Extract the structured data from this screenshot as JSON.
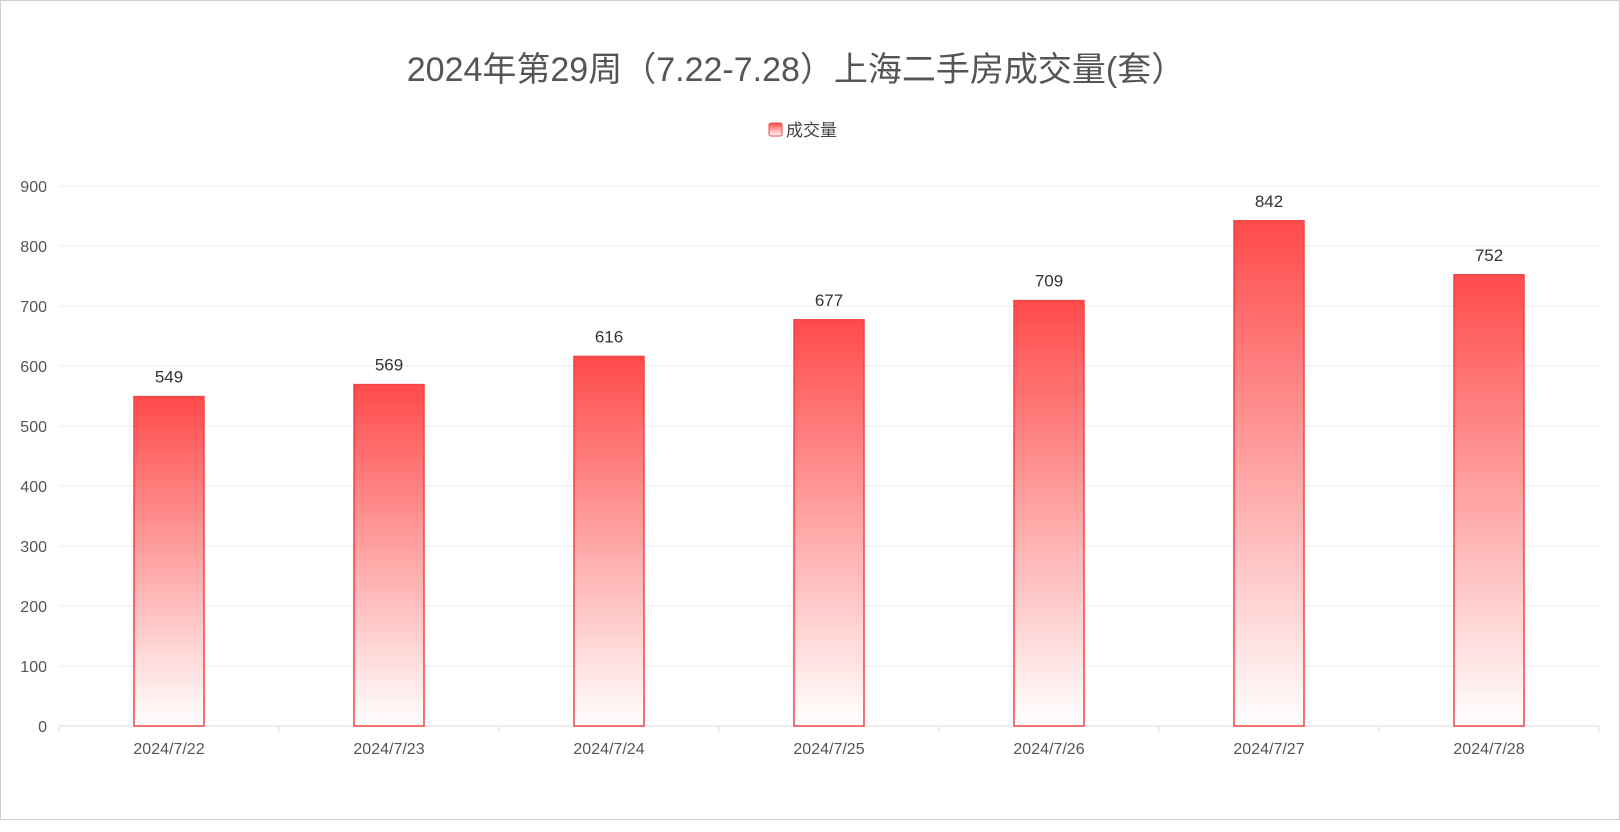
{
  "chart_data": {
    "type": "bar",
    "title": "2024年第29周（7.22-7.28）上海二手房成交量(套）",
    "xlabel": "",
    "ylabel": "",
    "categories": [
      "2024/7/22",
      "2024/7/23",
      "2024/7/24",
      "2024/7/25",
      "2024/7/26",
      "2024/7/27",
      "2024/7/28"
    ],
    "series": [
      {
        "name": "成交量",
        "values": [
          549,
          569,
          616,
          677,
          709,
          842,
          752
        ]
      }
    ],
    "ylim": [
      0,
      900
    ],
    "yticks": [
      0,
      100,
      200,
      300,
      400,
      500,
      600,
      700,
      800,
      900
    ],
    "grid": true,
    "legend": "top-center",
    "colors": {
      "bar_top": "#ff4a4a",
      "bar_bottom": "#ffffff",
      "bar_edge": "#f04646",
      "grid": "#eeeeee",
      "axis": "#dddddd"
    }
  }
}
